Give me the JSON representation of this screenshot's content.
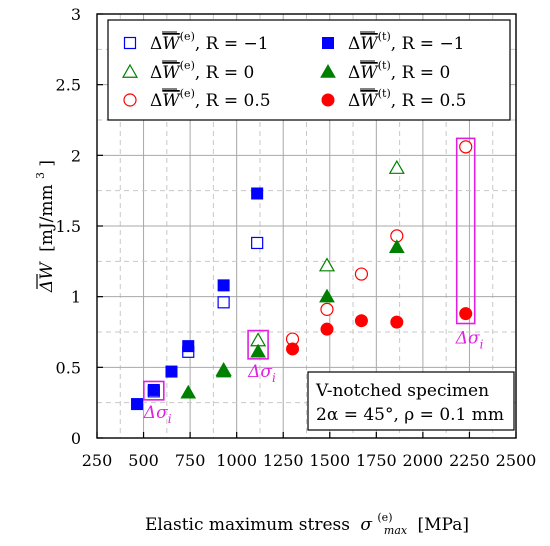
{
  "chart_data": {
    "type": "scatter",
    "xlabel_main": "Elastic maximum stress",
    "xlabel_symbol": "σ",
    "xlabel_sub": "max",
    "xlabel_sup": "(e)",
    "xlabel_unit": "[MPa]",
    "ylabel_main": "ΔW",
    "ylabel_unit": "[mJ/mm",
    "ylabel_unit_sup": "3",
    "ylabel_unit_close": "]",
    "xlim": [
      250,
      2500
    ],
    "ylim": [
      0,
      3
    ],
    "xticks": [
      250,
      500,
      750,
      1000,
      1250,
      1500,
      1750,
      2000,
      2250,
      2500
    ],
    "yticks": [
      0,
      0.5,
      1,
      1.5,
      2,
      2.5,
      3
    ],
    "ytick_labels": [
      "0",
      "0.5",
      "1",
      "1.5",
      "2",
      "2.5",
      "3"
    ],
    "grid": true,
    "legend_position": "top-right",
    "series": [
      {
        "name": "ΔW(e), R = −1",
        "legend_w_sup": "(e)",
        "legend_r": ", R = −1",
        "marker": "square-open",
        "color": "#0000ff",
        "x": [
          555,
          740,
          930,
          1110
        ],
        "y": [
          0.33,
          0.61,
          0.96,
          1.38
        ]
      },
      {
        "name": "ΔW(t), R = −1",
        "legend_w_sup": "(t)",
        "legend_r": ", R = −1",
        "marker": "square-filled",
        "color": "#0000ff",
        "x": [
          465,
          555,
          650,
          740,
          930,
          1110
        ],
        "y": [
          0.24,
          0.34,
          0.47,
          0.65,
          1.08,
          1.73
        ]
      },
      {
        "name": "ΔW(e), R = 0",
        "legend_w_sup": "(e)",
        "legend_r": ", R = 0",
        "marker": "triangle-open",
        "color": "#008000",
        "x": [
          930,
          1115,
          1485,
          1860
        ],
        "y": [
          0.48,
          0.69,
          1.22,
          1.91
        ]
      },
      {
        "name": "ΔW(t), R = 0",
        "legend_w_sup": "(t)",
        "legend_r": ", R = 0",
        "marker": "triangle-filled",
        "color": "#008000",
        "x": [
          740,
          930,
          1115,
          1485,
          1860
        ],
        "y": [
          0.32,
          0.47,
          0.61,
          1.0,
          1.35
        ]
      },
      {
        "name": "ΔW(e), R = 0.5",
        "legend_w_sup": "(e)",
        "legend_r": ", R = 0.5",
        "marker": "circle-open",
        "color": "#ff0000",
        "x": [
          1300,
          1485,
          1670,
          1860,
          2230
        ],
        "y": [
          0.7,
          0.91,
          1.16,
          1.43,
          2.06
        ]
      },
      {
        "name": "ΔW(t), R = 0.5",
        "legend_w_sup": "(t)",
        "legend_r": ", R = 0.5",
        "marker": "circle-filled",
        "color": "#ff0000",
        "x": [
          1300,
          1485,
          1670,
          1860,
          2230
        ],
        "y": [
          0.63,
          0.77,
          0.83,
          0.82,
          0.88
        ]
      }
    ],
    "highlights": [
      {
        "x": 555,
        "y_range": [
          0.27,
          0.4
        ],
        "label_symbol": "Δσ",
        "label_sub": "i"
      },
      {
        "x": 1115,
        "y_range": [
          0.56,
          0.76
        ],
        "label_symbol": "Δσ",
        "label_sub": "i"
      },
      {
        "x": 2230,
        "y_range": [
          0.81,
          2.12
        ],
        "label_symbol": "Δσ",
        "label_sub": "i"
      }
    ],
    "annotation": {
      "line1": "V-notched specimen",
      "line2": "2α = 45°, ρ = 0.1 mm"
    }
  }
}
